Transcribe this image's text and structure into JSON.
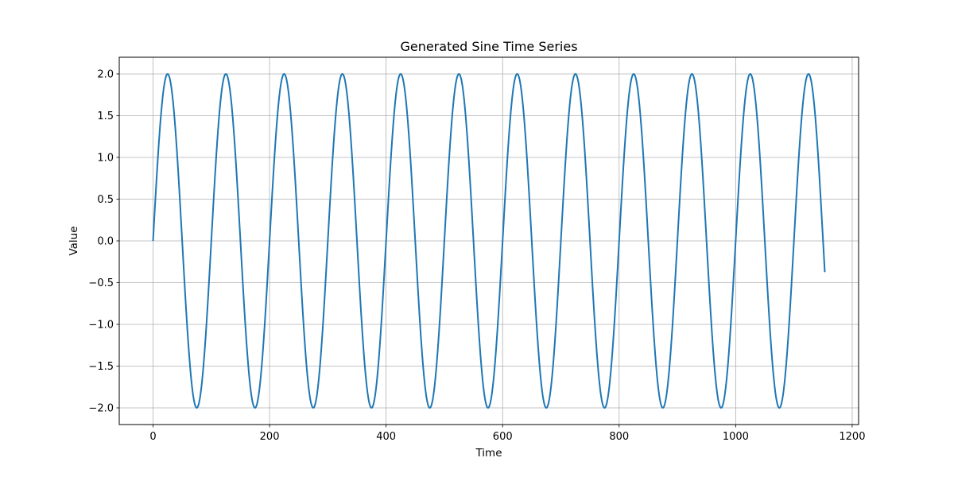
{
  "chart_data": {
    "type": "line",
    "title": "Generated Sine Time Series",
    "xlabel": "Time",
    "ylabel": "Value",
    "xlim": [
      -58,
      1211
    ],
    "ylim": [
      -2.2,
      2.2
    ],
    "xticks": [
      0,
      200,
      400,
      600,
      800,
      1000,
      1200
    ],
    "yticks": [
      -2.0,
      -1.5,
      -1.0,
      -0.5,
      0.0,
      0.5,
      1.0,
      1.5,
      2.0
    ],
    "grid": true,
    "series": [
      {
        "color": "#1f77b4",
        "function": "sine",
        "amplitude": 2.0,
        "period": 100,
        "x_start": 0,
        "x_end": 1153,
        "x_step": 1
      }
    ]
  },
  "colors": {
    "line": "#1f77b4",
    "grid": "#b0b0b0",
    "axes": "#000000"
  }
}
